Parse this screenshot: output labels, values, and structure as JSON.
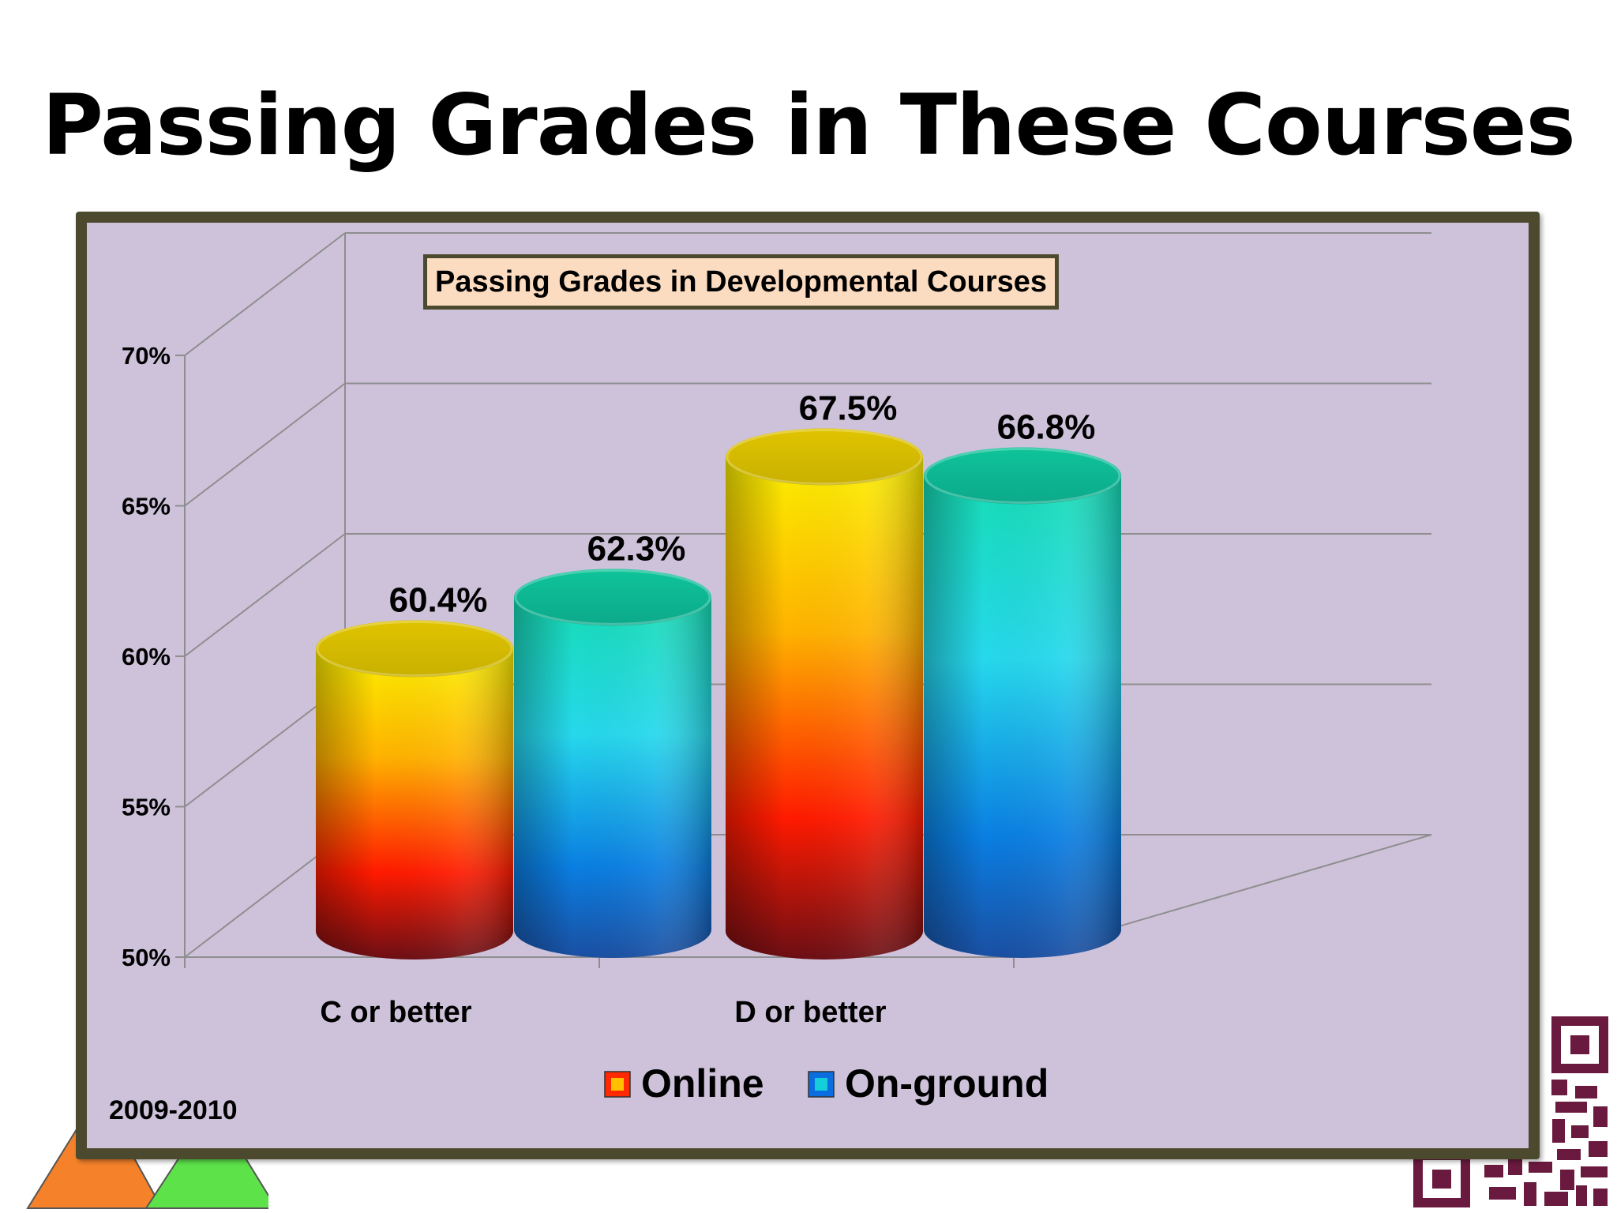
{
  "slide": {
    "title": "Passing Grades in These Courses",
    "period_label": "2009-2010"
  },
  "chart_data": {
    "type": "bar",
    "title": "Passing Grades in Developmental Courses",
    "xlabel": "",
    "ylabel": "",
    "categories": [
      "C or better",
      "D or better"
    ],
    "series": [
      {
        "name": "Online",
        "values": [
          60.4,
          67.5
        ],
        "value_labels": [
          "60.4%",
          "67.5%"
        ]
      },
      {
        "name": "On-ground",
        "values": [
          62.3,
          66.8
        ],
        "value_labels": [
          "62.3%",
          "66.8%"
        ]
      }
    ],
    "ylim": [
      50,
      70
    ],
    "yticks": [
      50,
      55,
      60,
      65,
      70
    ],
    "ytick_labels": [
      "50%",
      "55%",
      "60%",
      "65%",
      "70%"
    ],
    "grid": true,
    "three_d": true,
    "legend_position": "bottom"
  },
  "colors": {
    "frame": "#4b4a2e",
    "plot_background": "#cdc2da",
    "title_box_fill": "#fcdcc0",
    "online_gradient": [
      "#fbf000",
      "#ffb200",
      "#ff1a00",
      "#6b0e14"
    ],
    "onground_gradient": [
      "#16dcb4",
      "#26d8ec",
      "#0a7ee2",
      "#1a4fa2"
    ]
  },
  "icons": {
    "logo": "triangle-logo-icon",
    "qr": "qr-code-icon"
  }
}
